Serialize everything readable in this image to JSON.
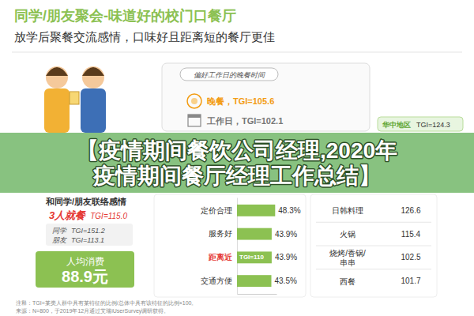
{
  "header": {
    "title": "同学/朋友聚会-味道好的校门口餐厅",
    "subtitle": "放学后聚餐交流感情，口味好且距离短的餐厅更佳"
  },
  "time_panel": {
    "title": "偏好工作日的晚餐时间",
    "items": [
      "晚餐，TGI=105.6",
      "工作日，TGI=102.1"
    ]
  },
  "region": {
    "name": "华中地区",
    "tgi": "TGI=124.3"
  },
  "banner": "【疫情期间餐饮公司经理,2020年疫情期间餐厅经理工作总结】",
  "social_panel": {
    "title": "和同学/朋友联络感情",
    "highlight": "3人就餐",
    "highlight_tgi": "TGI=115.0",
    "rows": [
      [
        "同学",
        "TGI=151.2"
      ],
      [
        "朋友",
        "TGI=113.1"
      ]
    ]
  },
  "spend": {
    "label": "人均消费",
    "value": "88.9元"
  },
  "chart_data": {
    "type": "bar",
    "orientation": "horizontal",
    "categories": [
      "定价合理",
      "服务好",
      "距离近",
      "交通方便"
    ],
    "values": [
      48.3,
      43.9,
      43.9,
      43.5
    ],
    "value_labels": [
      "48.3%",
      "43.9%",
      "43.9%",
      "43.5%"
    ],
    "color": "#8cc152",
    "xlim": [
      0,
      50
    ],
    "xticks": [],
    "grid": false,
    "data_labels": true,
    "tick_labels": "y",
    "annotations": [
      {
        "category": "距离近",
        "text": "TGI=110"
      }
    ]
  },
  "cuisine_table": {
    "rows": [
      [
        "日韩料理",
        "126.6"
      ],
      [
        "火锅",
        "115.4"
      ],
      [
        "烧烤/香锅/串串",
        "102.5"
      ],
      [
        "西餐",
        "101.7"
      ]
    ]
  },
  "footnotes": [
    "注释：TGI=某类人群中具有某特征的比例/总体中具有该特征的比例×100。",
    "来源：N=800，于2019年12月通过艾瑞iUserSurvey调研获得。"
  ]
}
